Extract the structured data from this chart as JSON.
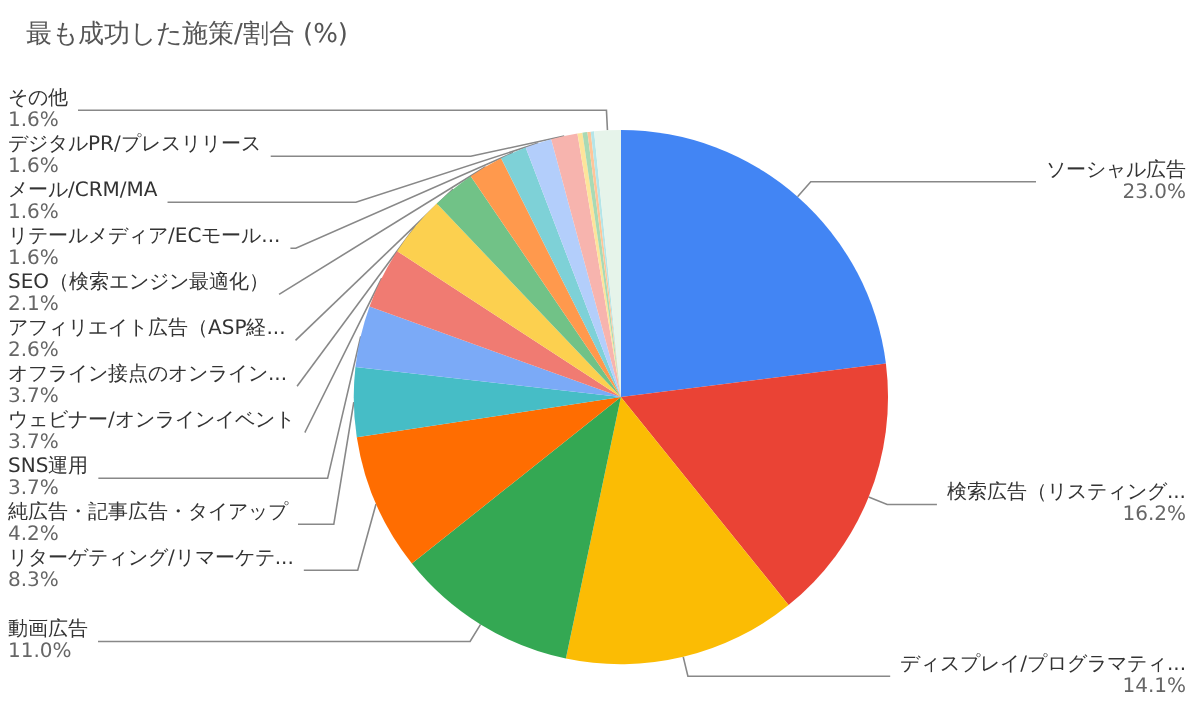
{
  "chart_data": {
    "type": "pie",
    "title": "最も成功した施策/割合 (%)",
    "categories": [
      "ソーシャル広告",
      "検索広告（リスティング...",
      "ディスプレイ/プログラマティ...",
      "動画広告",
      "リターゲティング/リマーケテ...",
      "純広告・記事広告・タイアップ",
      "SNS運用",
      "ウェビナー/オンラインイベント",
      "オフライン接点のオンライン...",
      "アフィリエイト広告（ASP経...",
      "SEO（検索エンジン最適化）",
      "リテールメディア/ECモール...",
      "メール/CRM/MA",
      "デジタルPR/プレスリリース",
      null,
      null,
      null,
      null,
      "その他"
    ],
    "values": [
      23.0,
      16.2,
      14.1,
      11.0,
      8.3,
      4.2,
      3.7,
      3.7,
      3.7,
      2.6,
      2.1,
      1.6,
      1.6,
      1.6,
      0.3,
      0.3,
      0.2,
      0.2,
      1.6
    ],
    "value_labels": [
      "23.0%",
      "16.2%",
      "14.1%",
      "11.0%",
      "8.3%",
      "4.2%",
      "3.7%",
      "3.7%",
      "3.7%",
      "2.6%",
      "2.1%",
      "1.6%",
      "1.6%",
      "1.6%",
      null,
      null,
      null,
      null,
      "1.6%"
    ],
    "colors": [
      "#4285f4",
      "#ea4335",
      "#fbbc04",
      "#34a853",
      "#ff6d01",
      "#46bdc6",
      "#7baaf7",
      "#f07b72",
      "#fcd04f",
      "#71c287",
      "#ff994d",
      "#7ed1d7",
      "#b3cefb",
      "#f7b4ae",
      "#fde49b",
      "#a8dab5",
      "#ffc599",
      "#b5e5e8",
      "#e6f4ea"
    ],
    "legend": false
  }
}
